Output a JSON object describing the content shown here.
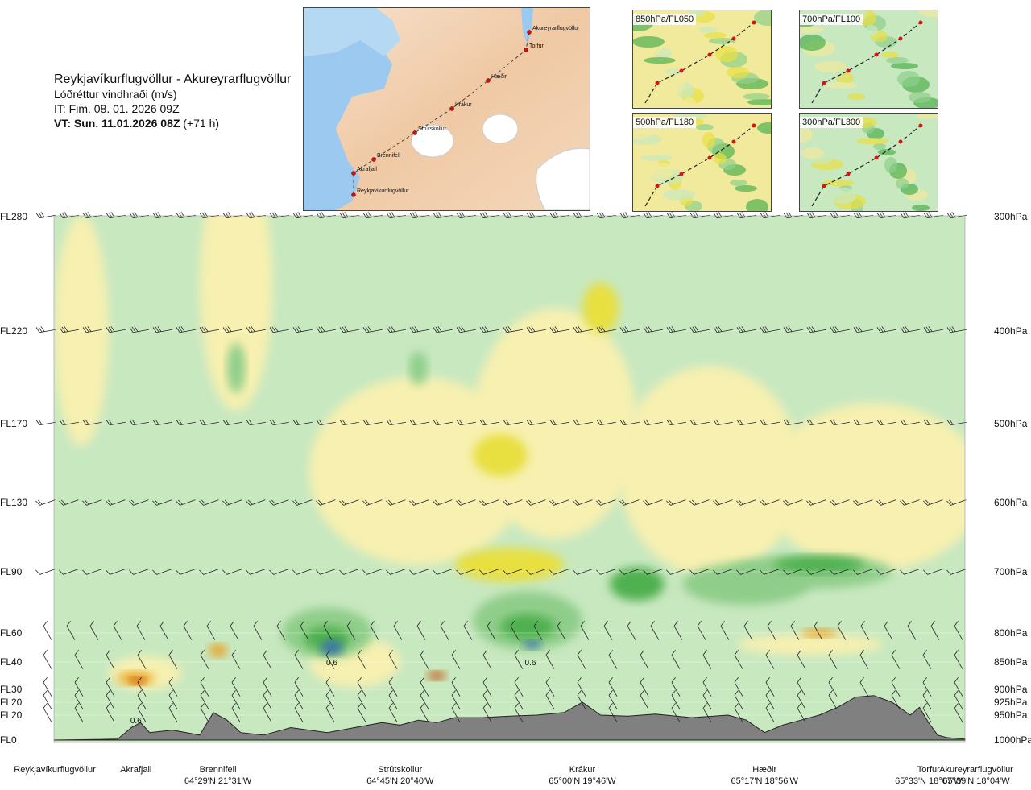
{
  "header": {
    "route": "Reykjavíkurflugvöllur - Akureyrarflugvöllur",
    "field": "Lóðréttur vindhraði (m/s)",
    "issue_time": "IT: Fim. 08. 01. 2026 09Z",
    "valid_prefix": "VT: Sun. 11.01.2026 08Z",
    "valid_offset": " (+71 h)"
  },
  "route_map": {
    "waypoints": [
      "Akureyrarflugvöllur",
      "Torfur",
      "Hæðir",
      "Krákur",
      "Strútskollur",
      "Brennifell",
      "Akrafjall",
      "Reykjavíkurflugvöllur"
    ]
  },
  "level_maps": [
    "850hPa/FL050",
    "700hPa/FL100",
    "500hPa/FL180",
    "300hPa/FL300"
  ],
  "chart_data": {
    "type": "heatmap",
    "title": "Lóðréttur vindhraði (m/s)",
    "y_levels": [
      {
        "fl": "FL280",
        "hpa": "300hPa"
      },
      {
        "fl": "FL220",
        "hpa": "400hPa"
      },
      {
        "fl": "FL170",
        "hpa": "500hPa"
      },
      {
        "fl": "FL130",
        "hpa": "600hPa"
      },
      {
        "fl": "FL90",
        "hpa": "700hPa"
      },
      {
        "fl": "FL60",
        "hpa": "800hPa"
      },
      {
        "fl": "FL40",
        "hpa": "850hPa"
      },
      {
        "fl": "FL30",
        "hpa": "900hPa"
      },
      {
        "fl": "FL20",
        "hpa": "925hPa"
      },
      {
        "fl": "FL20",
        "hpa": "950hPa"
      },
      {
        "fl": "FL0",
        "hpa": "1000hPa"
      }
    ],
    "y_pressure": [
      300,
      400,
      500,
      600,
      700,
      800,
      850,
      900,
      925,
      950,
      1000
    ],
    "x_locations": [
      {
        "name": "Reykjavíkurflugvöllur",
        "coord": "",
        "pos": 0.0
      },
      {
        "name": "Akrafjall",
        "coord": "",
        "pos": 0.09
      },
      {
        "name": "Brennifell",
        "coord": "64°29'N 21°31'W",
        "pos": 0.18
      },
      {
        "name": "Strútskollur",
        "coord": "64°45'N 20°40'W",
        "pos": 0.38
      },
      {
        "name": "Krákur",
        "coord": "65°00'N 19°46'W",
        "pos": 0.58
      },
      {
        "name": "Hæðir",
        "coord": "65°17'N 18°56'W",
        "pos": 0.78
      },
      {
        "name": "Torfur",
        "coord": "65°33'N 18°07'W",
        "pos": 0.96
      },
      {
        "name": "Akureyrarflugvöllur",
        "coord": "65°39'N 18°04'W",
        "pos": 1.0
      }
    ],
    "peak_labels": [
      {
        "text": "0.6",
        "pos": 0.305,
        "p": 850
      },
      {
        "text": "0.6",
        "pos": 0.523,
        "p": 850
      },
      {
        "text": "0.6",
        "pos": 0.09,
        "p": 960
      }
    ],
    "terrain_profile": {
      "x": [
        0,
        0.07,
        0.085,
        0.095,
        0.105,
        0.13,
        0.16,
        0.175,
        0.19,
        0.205,
        0.23,
        0.26,
        0.3,
        0.33,
        0.36,
        0.38,
        0.4,
        0.42,
        0.44,
        0.47,
        0.5,
        0.53,
        0.56,
        0.58,
        0.6,
        0.63,
        0.66,
        0.7,
        0.74,
        0.76,
        0.78,
        0.8,
        0.82,
        0.84,
        0.86,
        0.88,
        0.9,
        0.92,
        0.94,
        0.95,
        0.96,
        0.97,
        0.98,
        1.0
      ],
      "p": [
        1000,
        998,
        975,
        965,
        985,
        980,
        990,
        945,
        960,
        985,
        990,
        975,
        985,
        975,
        965,
        970,
        960,
        965,
        955,
        955,
        952,
        950,
        945,
        925,
        950,
        952,
        948,
        955,
        950,
        960,
        985,
        970,
        960,
        950,
        935,
        915,
        912,
        925,
        950,
        935,
        965,
        990,
        995,
        998
      ]
    },
    "colorscale": [
      "#3a6fb0",
      "#1f8a3a",
      "#4fb04f",
      "#8fce8a",
      "#c8e8c0",
      "#ffffff",
      "#f7f0b0",
      "#e8df40",
      "#e8a020",
      "#c05010"
    ]
  }
}
